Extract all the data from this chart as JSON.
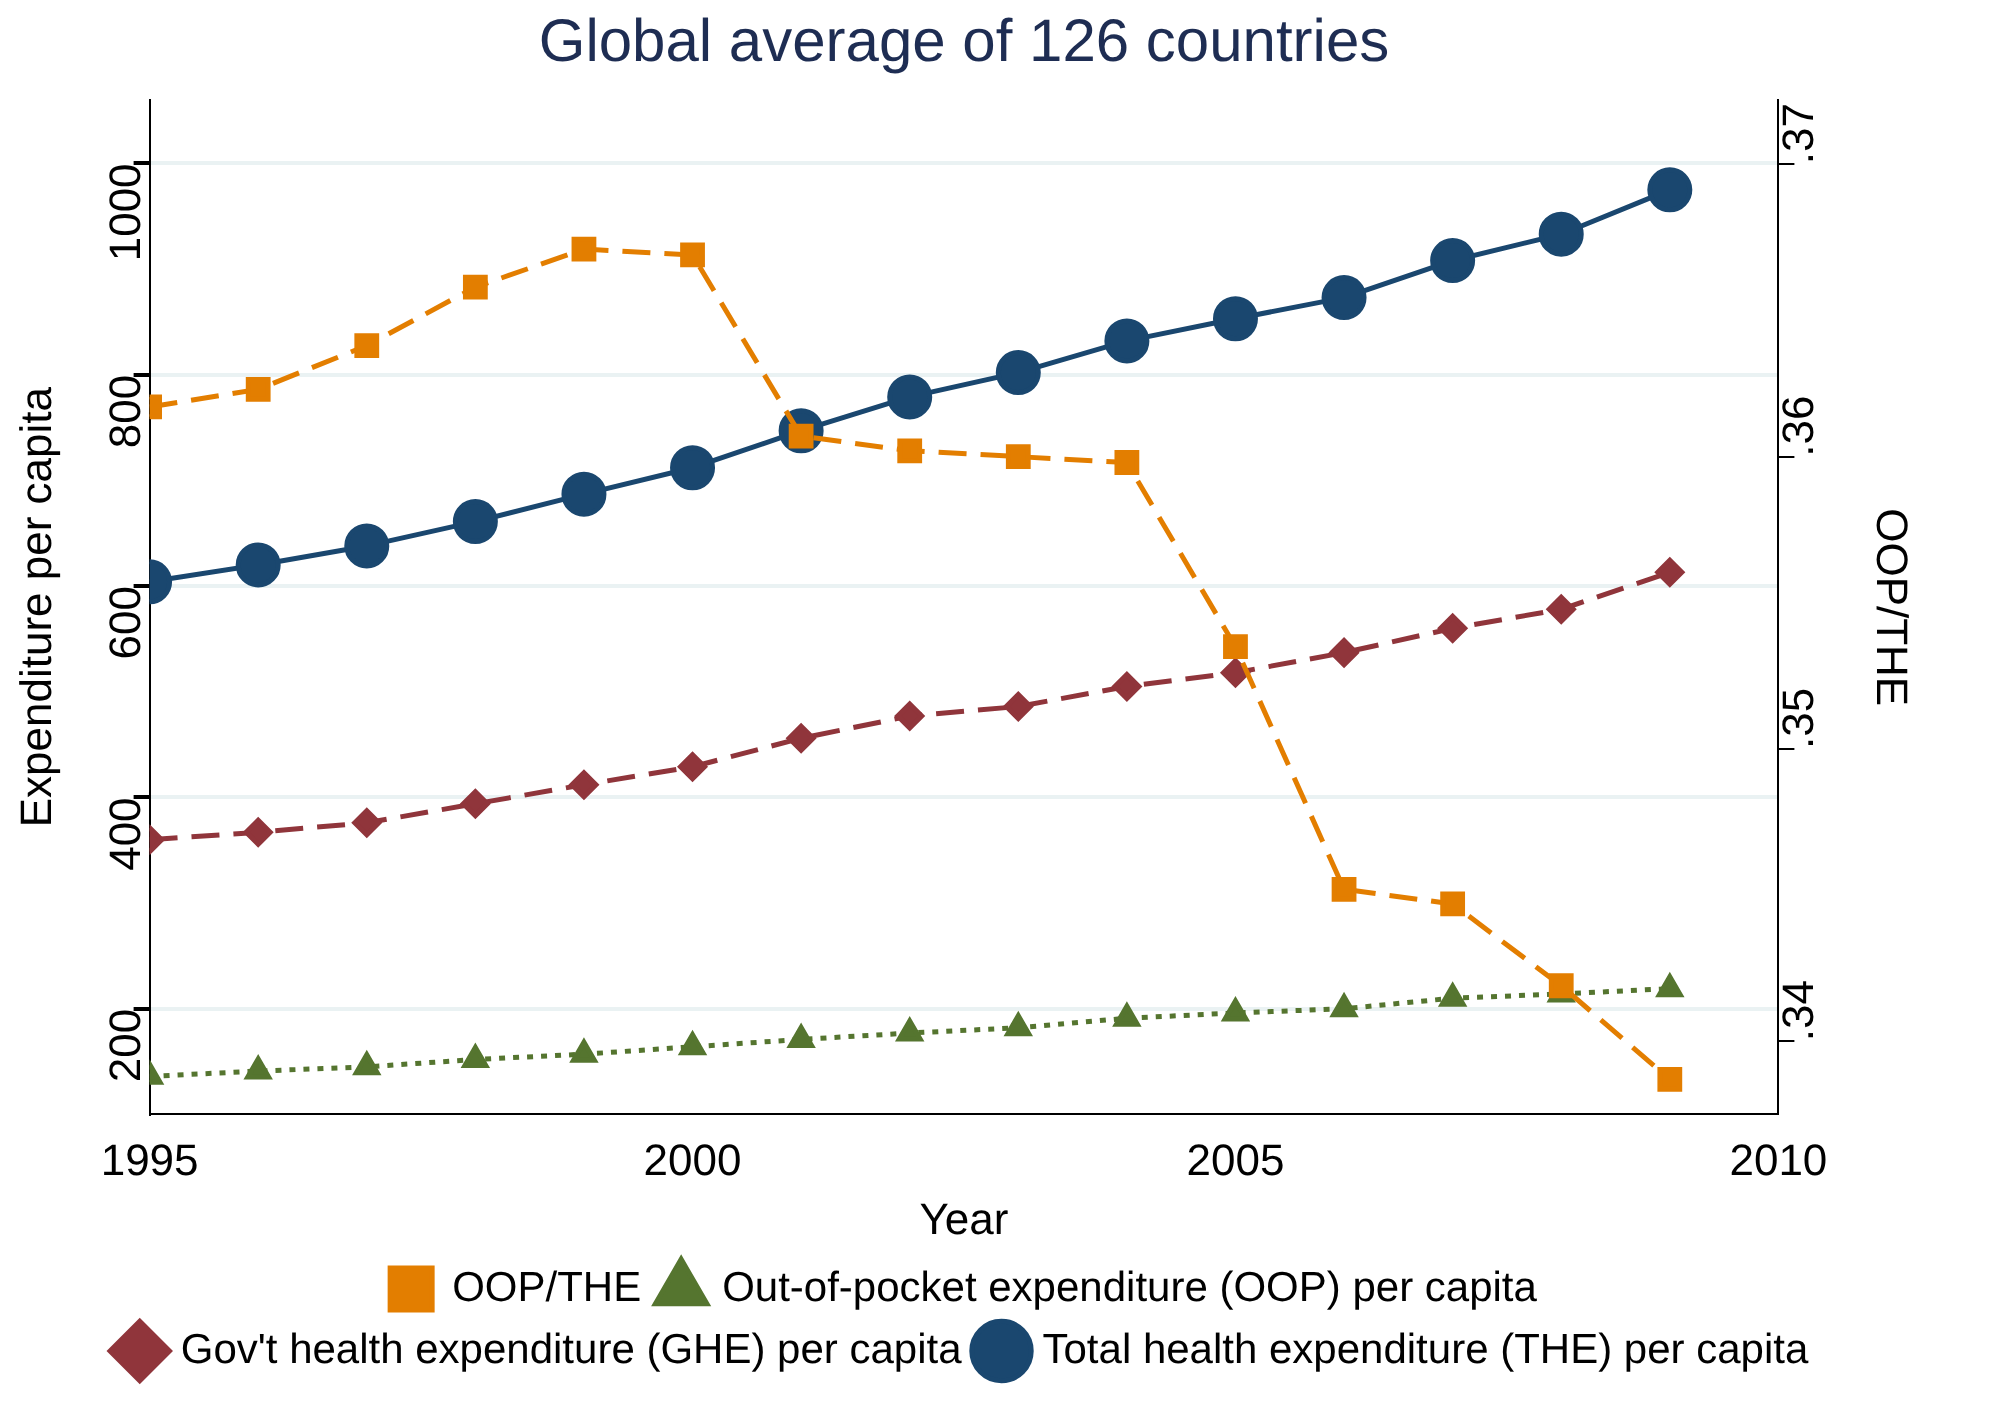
{
  "chart_data": {
    "type": "line",
    "title": "Global average of 126 countries",
    "xlabel": "Year",
    "ylabel": "Expenditure per capita",
    "y2label": "OOP/THE",
    "x": [
      1995,
      1996,
      1997,
      1998,
      1999,
      2000,
      2001,
      2002,
      2003,
      2004,
      2005,
      2006,
      2007,
      2008,
      2009
    ],
    "xlim": [
      1995,
      2010
    ],
    "xticks": [
      1995,
      2000,
      2005,
      2010
    ],
    "ylim": [
      100,
      1060
    ],
    "yticks": [
      200,
      400,
      600,
      800,
      1000
    ],
    "y2lim": [
      0.3375,
      0.3722
    ],
    "y2ticks": [
      {
        "value": 0.34,
        "label": ".34"
      },
      {
        "value": 0.35,
        "label": ".35"
      },
      {
        "value": 0.36,
        "label": ".36"
      },
      {
        "value": 0.37,
        "label": ".37"
      }
    ],
    "grid": "y",
    "legend": "bottom",
    "series": [
      {
        "name": "Total health expenditure (THE) per capita",
        "color": "#1a476f",
        "marker": "circle",
        "line_style": "solid",
        "values": [
          604,
          620,
          638,
          661,
          687,
          712,
          747,
          779,
          802,
          832,
          853,
          873,
          908,
          933,
          975
        ]
      },
      {
        "name": "Gov't health expenditure (GHE) per capita",
        "color": "#90353b",
        "marker": "diamond",
        "line_style": "dashed",
        "values": [
          360,
          367,
          376,
          394,
          412,
          429,
          456,
          477,
          486,
          505,
          518,
          537,
          560,
          578,
          613
        ]
      },
      {
        "name": "Out-of-pocket expenditure (OOP) per capita",
        "color": "#55752f",
        "marker": "triangle",
        "line_style": "dotted",
        "values": [
          136,
          141,
          145,
          152,
          157,
          164,
          171,
          177,
          182,
          191,
          196,
          200,
          210,
          214,
          219
        ]
      },
      {
        "name": "OOP/THE",
        "color": "#e37e00",
        "marker": "square",
        "line_style": "dashed",
        "axis": "y2",
        "values": [
          0.3617,
          0.3623,
          0.3638,
          0.3658,
          0.3671,
          0.3669,
          0.3607,
          0.3602,
          0.36,
          0.3598,
          0.3535,
          0.3452,
          0.3447,
          0.3419,
          0.3387
        ]
      }
    ]
  }
}
